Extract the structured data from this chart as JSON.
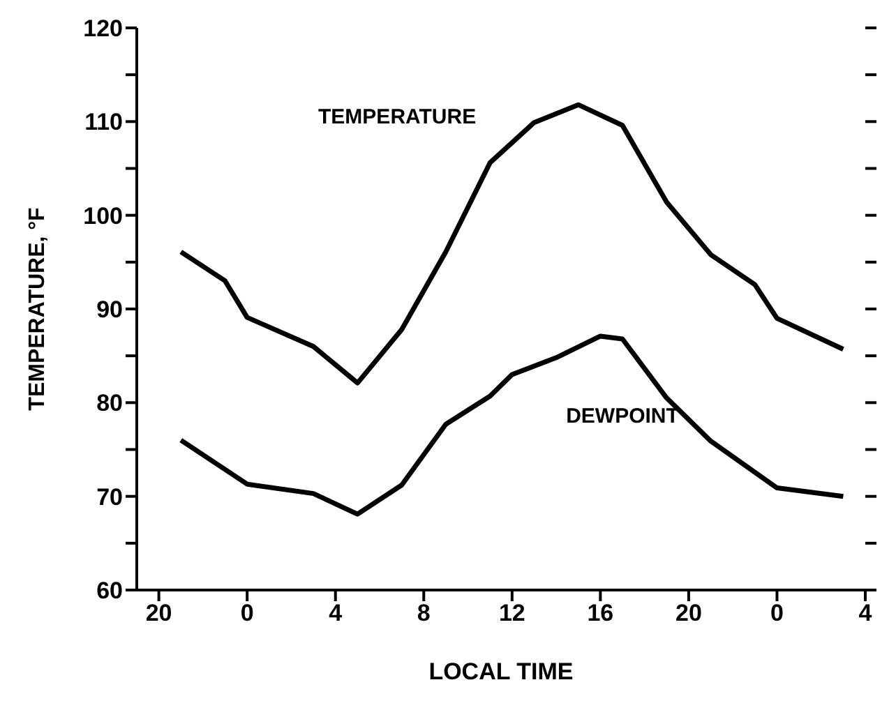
{
  "chart_data": {
    "type": "line",
    "xlabel": "LOCAL TIME",
    "ylabel": "TEMPERATURE, °F",
    "xlim": [
      "--01-01T19:00",
      "--01-03T04:00"
    ],
    "xticks": [
      {
        "value": "--01-01T20:00",
        "label": "20"
      },
      {
        "value": "--01-02T00:00",
        "label": "0"
      },
      {
        "value": "--01-02T04:00",
        "label": "4"
      },
      {
        "value": "--01-02T08:00",
        "label": "8"
      },
      {
        "value": "--01-02T12:00",
        "label": "12"
      },
      {
        "value": "--01-02T16:00",
        "label": "16"
      },
      {
        "value": "--01-02T20:00",
        "label": "20"
      },
      {
        "value": "--01-03T00:00",
        "label": "0"
      },
      {
        "value": "--01-03T04:00",
        "label": "4"
      }
    ],
    "ylim": [
      60,
      120
    ],
    "yticks": [
      60,
      {
        "value": 65,
        "label": null
      },
      70,
      {
        "value": 75,
        "label": null
      },
      80,
      {
        "value": 85,
        "label": null
      },
      90,
      {
        "value": 95,
        "label": null
      },
      100,
      {
        "value": 105,
        "label": null
      },
      110,
      {
        "value": 115,
        "label": null
      },
      120
    ],
    "grid": false,
    "legend": false,
    "marker": "none",
    "line_style": "solid",
    "series": [
      {
        "name": "TEMPERATURE",
        "color": "#000000",
        "x": [
          "--01-01T21:00",
          "--01-01T23:00",
          "--01-02T00:00",
          "--01-02T03:00",
          "--01-02T05:00",
          "--01-02T07:00",
          "--01-02T09:00",
          "--01-02T11:00",
          "--01-02T13:00",
          "--01-02T15:00",
          "--01-02T17:00",
          "--01-02T19:00",
          "--01-02T21:00",
          "--01-02T23:00",
          "--01-03T00:00",
          "--01-03T03:00"
        ],
        "values": [
          96.1,
          93.0,
          89.1,
          86.0,
          82.1,
          87.8,
          96.1,
          105.6,
          109.9,
          111.8,
          109.6,
          101.4,
          95.8,
          92.6,
          89.0,
          85.7
        ]
      },
      {
        "name": "DEWPOINT",
        "color": "#000000",
        "x": [
          "--01-01T21:00",
          "--01-02T00:00",
          "--01-02T03:00",
          "--01-02T05:00",
          "--01-02T07:00",
          "--01-02T09:00",
          "--01-02T11:00",
          "--01-02T12:00",
          "--01-02T14:00",
          "--01-02T16:00",
          "--01-02T17:00",
          "--01-02T19:00",
          "--01-02T21:00",
          "--01-03T00:00",
          "--01-03T03:00"
        ],
        "values": [
          76.0,
          71.3,
          70.3,
          68.1,
          71.2,
          77.7,
          80.7,
          83.0,
          84.8,
          87.1,
          86.8,
          80.5,
          75.9,
          70.9,
          70.0
        ]
      }
    ]
  }
}
